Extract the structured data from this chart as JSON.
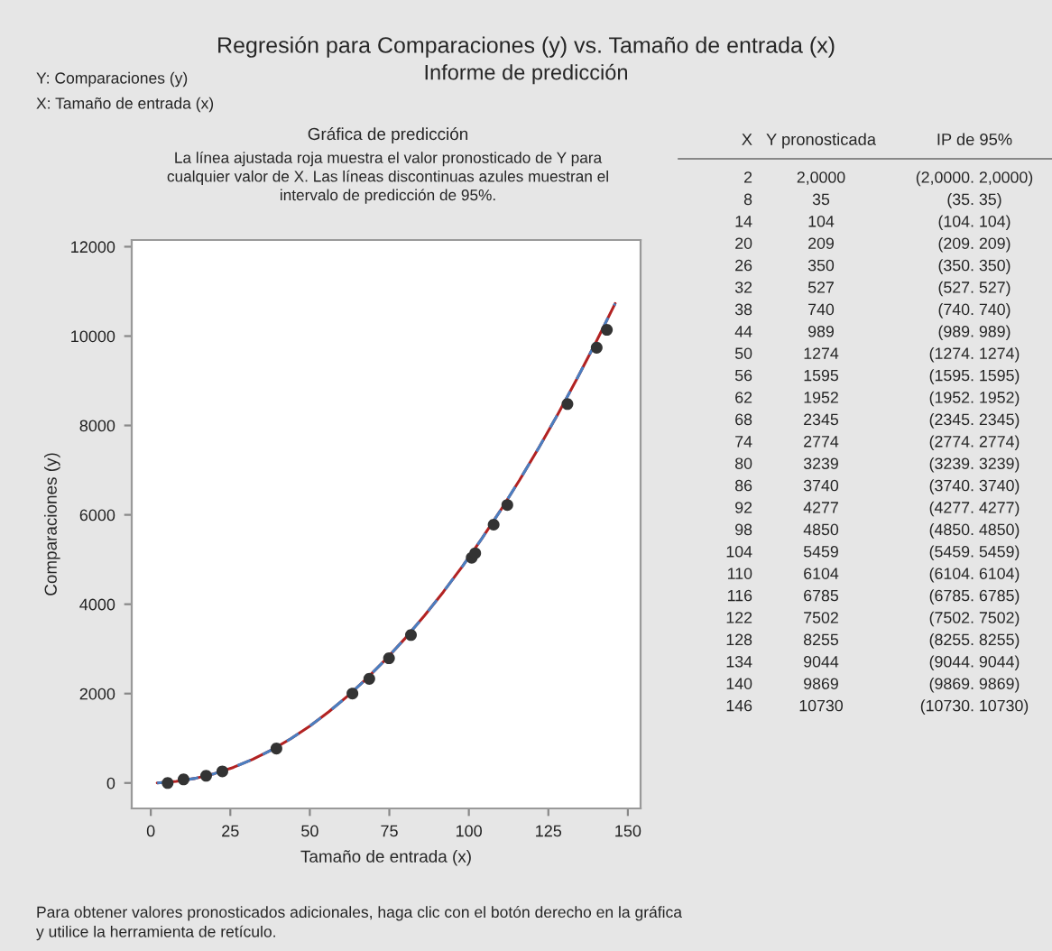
{
  "chart_data": {
    "type": "line",
    "title": "Regresión para Comparaciones (y) vs. Tamaño de entrada (x)",
    "subtitle": "Informe de predicción",
    "xlabel": "Tamaño de entrada (x)",
    "ylabel": "Comparaciones (y)",
    "xlim": [
      -6,
      154
    ],
    "ylim": [
      -570,
      12150
    ],
    "xticks": [
      0,
      25,
      50,
      75,
      100,
      125,
      150
    ],
    "yticks": [
      0,
      2000,
      4000,
      6000,
      8000,
      10000,
      12000
    ],
    "grid": false,
    "series": [
      {
        "type": "scatter",
        "marker": "circle",
        "color": "#333333",
        "x": [
          5.3,
          10.3,
          17.4,
          22.5,
          39.5,
          63.4,
          68.7,
          74.9,
          81.8,
          100.9,
          102,
          107.8,
          112.1,
          131,
          140.2,
          143.4
        ],
        "values": [
          0,
          80,
          160,
          260,
          770,
          2000,
          2330,
          2790,
          3310,
          5040,
          5140,
          5780,
          6220,
          8480,
          9740,
          10140
        ]
      },
      {
        "color": "#b22222",
        "line_style": "solid",
        "x": [
          2,
          8,
          14,
          20,
          26,
          32,
          38,
          44,
          50,
          56,
          62,
          68,
          74,
          80,
          86,
          92,
          98,
          104,
          110,
          116,
          122,
          128,
          134,
          140,
          146
        ],
        "values": [
          2,
          35,
          104,
          209,
          350,
          527,
          740,
          989,
          1274,
          1595,
          1952,
          2345,
          2774,
          3239,
          3740,
          4277,
          4850,
          5459,
          6104,
          6785,
          7502,
          8255,
          9044,
          9869,
          10730
        ]
      },
      {
        "type": "line",
        "color": "#4a7fc1",
        "line_style": "dashed",
        "x": [
          2,
          8,
          14,
          20,
          26,
          32,
          38,
          44,
          50,
          56,
          62,
          68,
          74,
          80,
          86,
          92,
          98,
          104,
          110,
          116,
          122,
          128,
          134,
          140,
          146
        ],
        "values": [
          2,
          35,
          104,
          209,
          350,
          527,
          740,
          989,
          1274,
          1595,
          1952,
          2345,
          2774,
          3239,
          3740,
          4277,
          4850,
          5459,
          6104,
          6785,
          7502,
          8255,
          9044,
          9869,
          10730
        ]
      }
    ],
    "annotations": [
      "Y: Comparaciones (y)",
      "X: Tamaño de entrada (x)",
      "Gráfica de predicción",
      "La línea ajustada roja muestra el valor pronosticado de Y para\ncualquier valor de X. Las líneas discontinuas azules muestran el\nintervalo de predicción de 95%.",
      "X",
      "Y pronosticada",
      "IP de 95%",
      "2",
      "2,0000",
      "(2,0000. 2,0000)",
      "8",
      "35",
      "(35. 35)",
      "14",
      "104",
      "(104. 104)",
      "20",
      "209",
      "(209. 209)",
      "26",
      "350",
      "(350. 350)",
      "32",
      "527",
      "(527. 527)",
      "38",
      "740",
      "(740. 740)",
      "44",
      "989",
      "(989. 989)",
      "50",
      "1274",
      "(1274. 1274)",
      "56",
      "1595",
      "(1595. 1595)",
      "62",
      "1952",
      "(1952. 1952)",
      "68",
      "2345",
      "(2345. 2345)",
      "74",
      "2774",
      "(2774. 2774)",
      "80",
      "3239",
      "(3239. 3239)",
      "86",
      "3740",
      "(3740. 3740)",
      "92",
      "4277",
      "(4277. 4277)",
      "98",
      "4850",
      "(4850. 4850)",
      "104",
      "5459",
      "(5459. 5459)",
      "110",
      "6104",
      "(6104. 6104)",
      "116",
      "6785",
      "(6785. 6785)",
      "122",
      "7502",
      "(7502. 7502)",
      "128",
      "8255",
      "(8255. 8255)",
      "134",
      "9044",
      "(9044. 9044)",
      "140",
      "9869",
      "(9869. 9869)",
      "146",
      "10730",
      "(10730. 10730)",
      "Para obtener valores pronosticados adicionales, haga clic con el botón derecho en la gráfica\ny utilice la herramienta de retículo."
    ]
  }
}
